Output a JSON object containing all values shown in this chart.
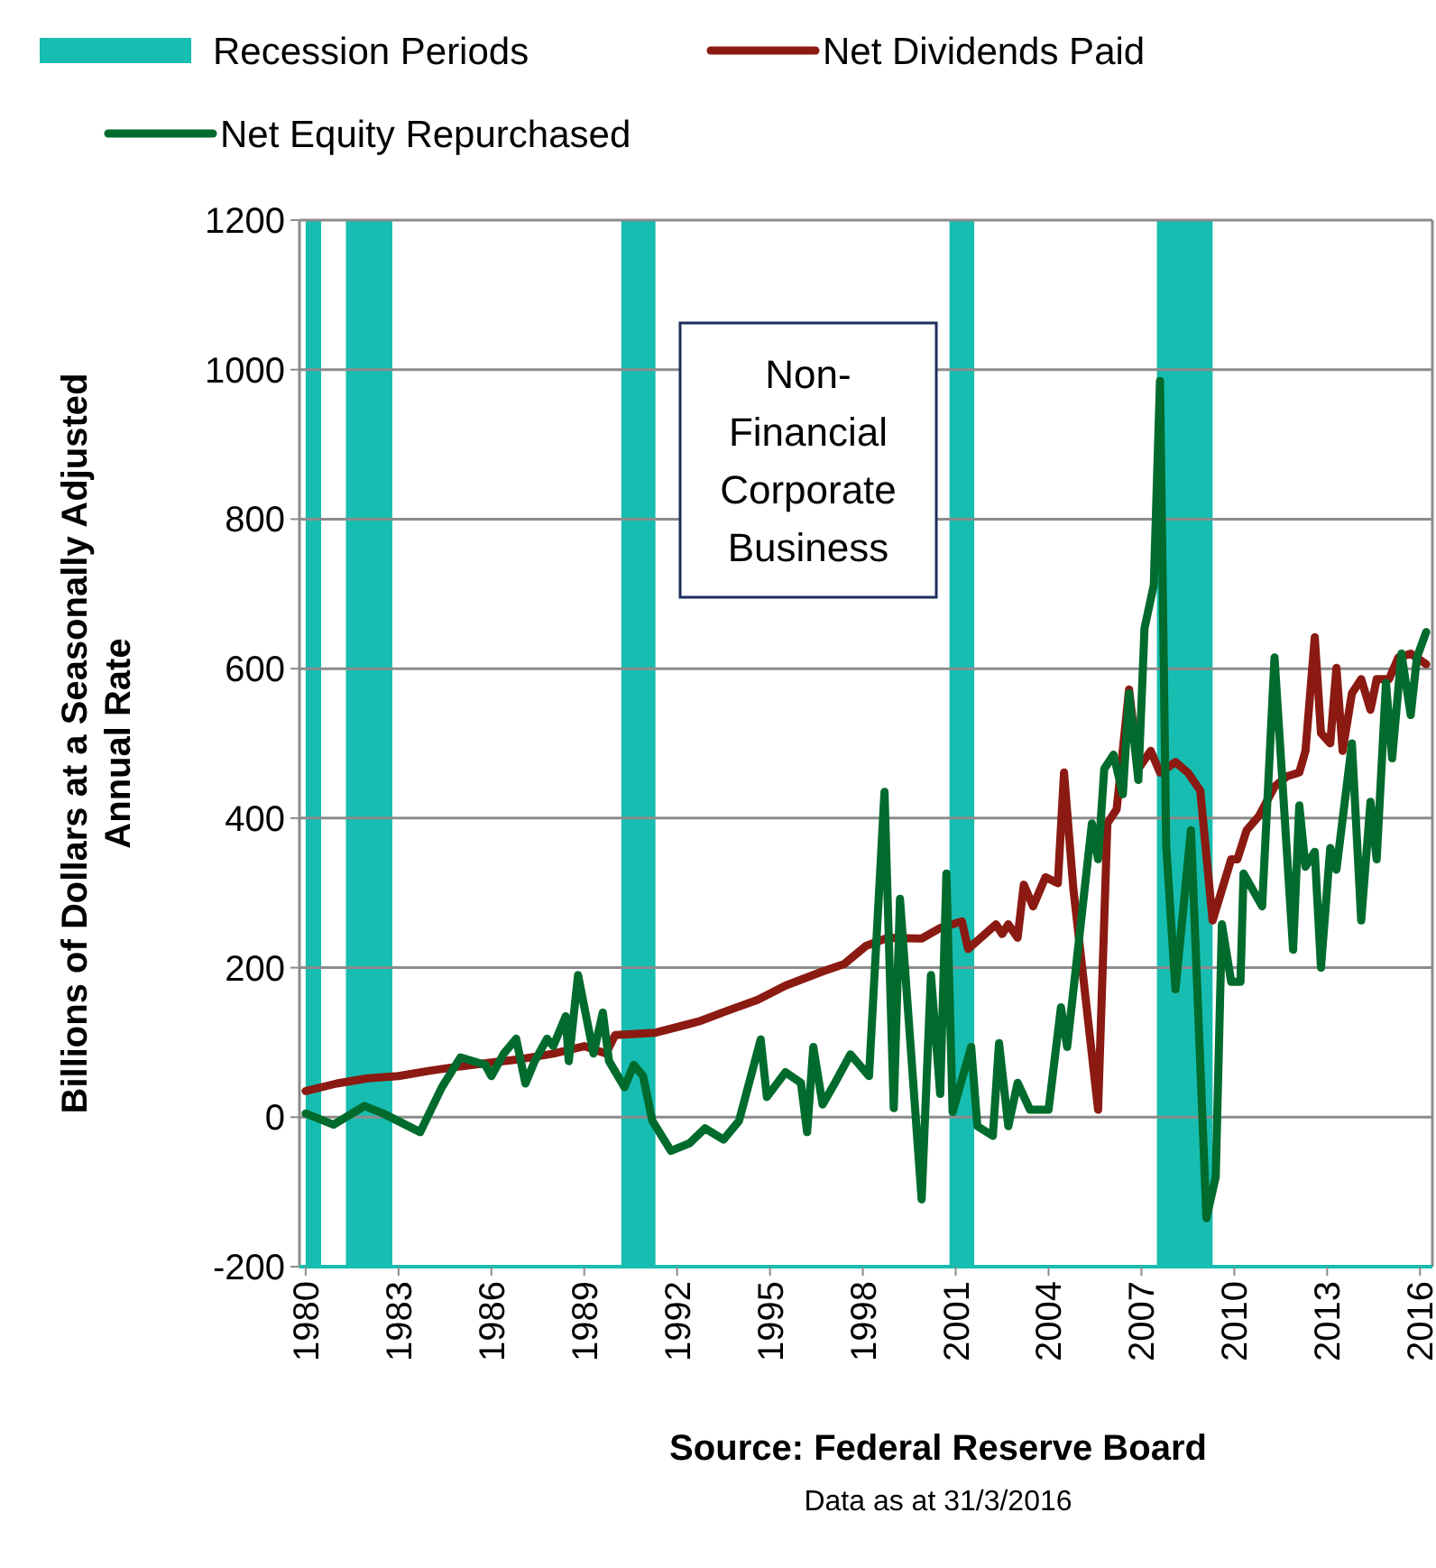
{
  "chart_data": {
    "type": "line",
    "ylabel": "Billions of Dollars at a Seasonally Adjusted Annual Rate",
    "legend": "top",
    "grid": "y",
    "xlim": [
      1979.8,
      2016.4
    ],
    "ylim": [
      -200,
      1200
    ],
    "xticks": [
      1980,
      1983,
      1986,
      1989,
      1992,
      1995,
      1998,
      2001,
      2004,
      2007,
      2010,
      2013,
      2016
    ],
    "yticks": [
      -200,
      0,
      200,
      400,
      600,
      800,
      1000,
      1200
    ],
    "bands": [
      {
        "axis": "x",
        "from": 1980.0,
        "to": 1980.5,
        "label": "Recession Periods",
        "color": "#17bdb0"
      },
      {
        "axis": "x",
        "from": 1981.3,
        "to": 1982.8,
        "color": "#17bdb0"
      },
      {
        "axis": "x",
        "from": 1990.2,
        "to": 1991.3,
        "color": "#17bdb0"
      },
      {
        "axis": "x",
        "from": 2000.8,
        "to": 2001.6,
        "color": "#17bdb0"
      },
      {
        "axis": "x",
        "from": 2007.5,
        "to": 2009.3,
        "color": "#17bdb0"
      }
    ],
    "series": [
      {
        "name": "Net Dividends Paid",
        "color": "#8b1a12",
        "x": [
          1980,
          1981,
          1982,
          1983,
          1984,
          1985,
          1986,
          1987,
          1988,
          1989,
          1989.7,
          1990,
          1991.3,
          1992.7,
          1993.6,
          1994.6,
          1995.5,
          1996.7,
          1997.4,
          1998.1,
          1998.8,
          1999.9,
          2000.5,
          2001.2,
          2001.4,
          2002.3,
          2002.5,
          2002.7,
          2003.0,
          2003.2,
          2003.5,
          2003.9,
          2004.3,
          2004.5,
          2004.8,
          2005.6,
          2005.9,
          2006.2,
          2006.6,
          2006.9,
          2007.3,
          2007.6,
          2008.1,
          2008.5,
          2008.9,
          2009.3,
          2009.9,
          2010.1,
          2010.4,
          2010.8,
          2011.3,
          2011.7,
          2012.1,
          2012.3,
          2012.6,
          2012.8,
          2013.1,
          2013.3,
          2013.5,
          2013.8,
          2014.1,
          2014.4,
          2014.6,
          2015.0,
          2015.3,
          2015.7,
          2016.2
        ],
        "values": [
          35,
          45,
          52,
          55,
          62,
          68,
          73,
          78,
          85,
          95,
          85,
          110,
          113,
          128,
          142,
          157,
          176,
          195,
          205,
          229,
          240,
          239,
          253,
          262,
          225,
          258,
          245,
          258,
          240,
          311,
          282,
          321,
          313,
          461,
          306,
          10,
          393,
          412,
          572,
          466,
          490,
          461,
          475,
          461,
          437,
          263,
          345,
          345,
          384,
          403,
          442,
          456,
          461,
          490,
          642,
          514,
          500,
          601,
          490,
          567,
          586,
          545,
          586,
          586,
          615,
          620,
          606
        ]
      },
      {
        "name": "Net Equity Repurchased",
        "color": "#006b2d",
        "x": [
          1980,
          1980.9,
          1981.9,
          1982.5,
          1983.7,
          1984.4,
          1985.0,
          1985.8,
          1986.0,
          1986.4,
          1986.8,
          1987.1,
          1987.4,
          1987.8,
          1988.0,
          1988.4,
          1988.5,
          1988.8,
          1989.3,
          1989.6,
          1989.8,
          1990.3,
          1990.6,
          1990.9,
          1991.2,
          1991.8,
          1992.4,
          1992.9,
          1993.5,
          1994.0,
          1994.7,
          1994.9,
          1995.5,
          1996.0,
          1996.2,
          1996.4,
          1996.7,
          1997.1,
          1997.6,
          1998.2,
          1998.7,
          1999.0,
          1999.2,
          1999.9,
          2000.2,
          2000.5,
          2000.7,
          2000.9,
          2001.5,
          2001.7,
          2002.2,
          2002.4,
          2002.7,
          2003.0,
          2003.4,
          2004.0,
          2004.4,
          2004.6,
          2005.4,
          2005.6,
          2005.8,
          2006.1,
          2006.4,
          2006.6,
          2006.9,
          2007.1,
          2007.4,
          2007.6,
          2007.8,
          2008.1,
          2008.6,
          2009.1,
          2009.4,
          2009.6,
          2009.9,
          2010.2,
          2010.3,
          2010.9,
          2011.3,
          2011.9,
          2012.1,
          2012.3,
          2012.6,
          2012.8,
          2013.1,
          2013.3,
          2013.8,
          2014.1,
          2014.4,
          2014.6,
          2014.9,
          2015.1,
          2015.4,
          2015.7,
          2015.9,
          2016.2
        ],
        "values": [
          5,
          -10,
          15,
          5,
          -20,
          40,
          80,
          70,
          55,
          85,
          105,
          45,
          75,
          105,
          95,
          135,
          75,
          190,
          85,
          140,
          75,
          40,
          70,
          55,
          -5,
          -45,
          -35,
          -15,
          -30,
          -5,
          104,
          27,
          60,
          46,
          -20,
          94,
          17,
          46,
          84,
          55,
          435,
          12,
          292,
          -110,
          190,
          31,
          326,
          7,
          94,
          -12,
          -25,
          99,
          -12,
          46,
          10,
          10,
          147,
          94,
          393,
          345,
          466,
          485,
          432,
          567,
          451,
          654,
          712,
          985,
          364,
          171,
          384,
          -135,
          -80,
          258,
          181,
          181,
          326,
          282,
          615,
          224,
          417,
          335,
          355,
          200,
          360,
          331,
          500,
          263,
          422,
          345,
          581,
          480,
          620,
          538,
          615,
          649
        ]
      }
    ],
    "annotations": [
      "Non-Financial Corporate Business",
      "Source: Federal Reserve Board",
      "Data as at 31/3/2016"
    ]
  }
}
